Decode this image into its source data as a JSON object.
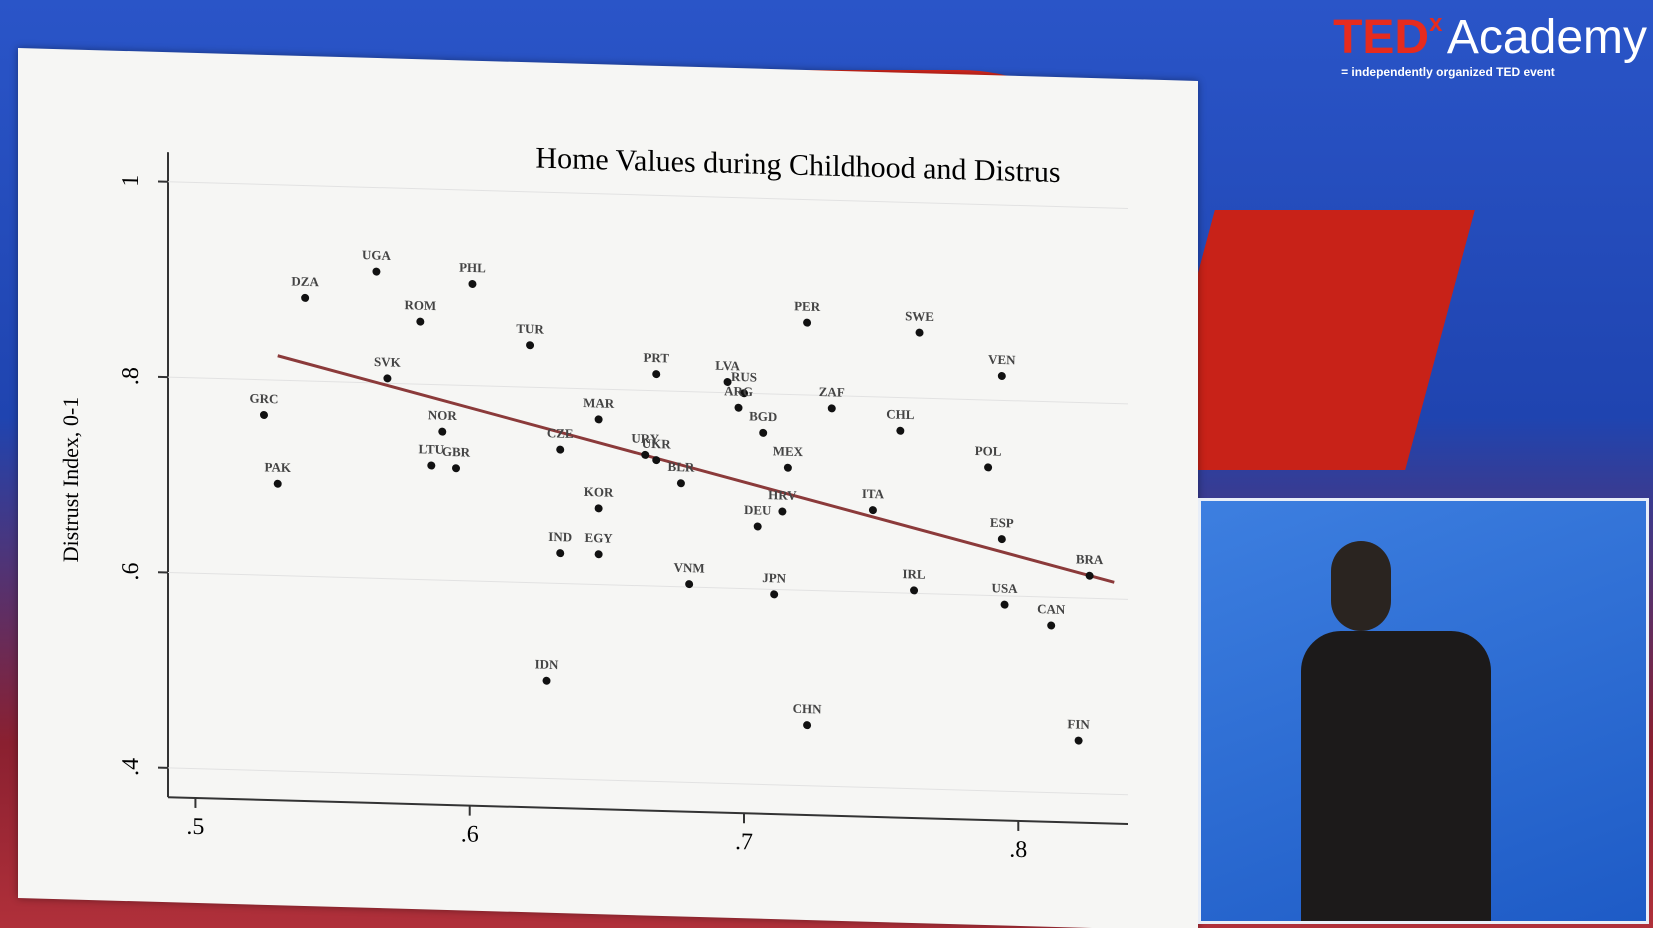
{
  "branding": {
    "logo": "TED",
    "logo_x": "x",
    "name": "Academy",
    "tagline": "= independently organized TED event"
  },
  "chart_data": {
    "type": "scatter",
    "title": "Home Values during Childhood and Distrus",
    "y_label": "Distrust Index, 0-1",
    "labels": [
      "UGA",
      "DZA",
      "PHL",
      "ROM",
      "TUR",
      "SVK",
      "GRC",
      "PAK",
      "NOR",
      "LTU",
      "GBR",
      "MAR",
      "CZE",
      "PRT",
      "URY",
      "UKR",
      "BLR",
      "KOR",
      "IND",
      "EGY",
      "VNM",
      "IDN",
      "LVA",
      "RUS",
      "ARG",
      "BGD",
      "MEX",
      "DEU",
      "HRV",
      "JPN",
      "CHN",
      "PER",
      "ZAF",
      "SWE",
      "CHL",
      "ITA",
      "IRL",
      "VEN",
      "POL",
      "ESP",
      "USA",
      "CAN",
      "BRA",
      "FIN"
    ],
    "x": [
      0.566,
      0.54,
      0.601,
      0.582,
      0.622,
      0.57,
      0.525,
      0.53,
      0.59,
      0.586,
      0.595,
      0.647,
      0.633,
      0.668,
      0.664,
      0.668,
      0.677,
      0.647,
      0.633,
      0.647,
      0.68,
      0.628,
      0.694,
      0.7,
      0.698,
      0.707,
      0.716,
      0.705,
      0.714,
      0.711,
      0.723,
      0.723,
      0.732,
      0.764,
      0.757,
      0.747,
      0.762,
      0.794,
      0.789,
      0.794,
      0.795,
      0.812,
      0.826,
      0.822
    ],
    "values": [
      0.914,
      0.885,
      0.904,
      0.864,
      0.843,
      0.805,
      0.764,
      0.694,
      0.752,
      0.717,
      0.715,
      0.769,
      0.737,
      0.817,
      0.734,
      0.729,
      0.706,
      0.678,
      0.631,
      0.631,
      0.603,
      0.5,
      0.811,
      0.8,
      0.785,
      0.76,
      0.725,
      0.664,
      0.68,
      0.595,
      0.462,
      0.874,
      0.787,
      0.867,
      0.766,
      0.684,
      0.603,
      0.825,
      0.731,
      0.658,
      0.591,
      0.571,
      0.623,
      0.454
    ],
    "color": "#111111",
    "fit": {
      "x": [
        0.53,
        0.835
      ],
      "values": [
        0.825,
        0.617
      ],
      "color": "#8b3a3a"
    },
    "xlim": [
      0.49,
      0.84
    ],
    "ylim": [
      0.37,
      1.02
    ],
    "xticks": [
      {
        "value": 0.5,
        "label": ".5"
      },
      {
        "value": 0.6,
        "label": ".6"
      },
      {
        "value": 0.7,
        "label": ".7"
      },
      {
        "value": 0.8,
        "label": ".8"
      }
    ],
    "yticks": [
      {
        "value": 0.4,
        "label": ".4"
      },
      {
        "value": 0.6,
        "label": ".6"
      },
      {
        "value": 0.8,
        "label": ".8"
      },
      1
    ],
    "grid": true
  }
}
